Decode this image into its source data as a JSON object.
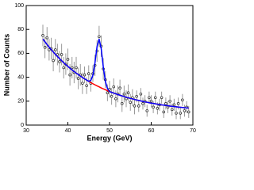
{
  "chart_data": {
    "type": "scatter",
    "x_label": "Energy (GeV)",
    "y_label": "Number of Counts",
    "x": [
      34,
      34.5,
      35,
      35.5,
      36,
      36.5,
      37,
      37.5,
      38,
      38.5,
      39,
      39.5,
      40,
      40.5,
      41,
      41.5,
      42,
      42.5,
      43,
      43.5,
      44,
      44.5,
      45,
      45.5,
      46,
      46.5,
      47,
      47.5,
      48,
      48.5,
      49,
      49.5,
      50,
      50.5,
      51,
      51.5,
      52,
      52.5,
      53,
      53.5,
      54,
      54.5,
      55,
      55.5,
      56,
      56.5,
      57,
      57.5,
      58,
      58.5,
      59,
      59.5,
      60,
      60.5,
      61,
      61.5,
      62,
      62.5,
      63,
      63.5,
      64,
      64.5,
      65,
      65.5,
      66,
      66.5,
      67,
      67.5,
      68,
      68.5,
      69
    ],
    "series": [
      {
        "type": "scatter",
        "color": "#333333",
        "error_color": "#999999",
        "values": [
          75,
          65,
          73,
          63,
          64,
          54,
          63,
          59,
          53,
          59,
          48,
          51,
          55,
          42,
          48,
          44,
          48,
          39,
          42,
          35,
          42,
          33,
          43,
          35,
          43,
          50,
          62,
          74,
          66,
          47,
          38,
          27,
          30,
          24,
          32,
          22,
          26,
          31,
          18,
          26,
          22,
          27,
          19,
          23,
          16,
          24,
          16,
          26,
          18,
          20,
          12,
          23,
          20,
          15,
          23,
          14,
          17,
          23,
          11,
          18,
          15,
          20,
          13,
          17,
          10,
          18,
          10,
          21,
          12,
          15,
          11
        ],
        "errors": [
          9,
          9,
          9,
          9,
          9,
          9,
          9,
          9,
          9,
          9,
          9,
          9,
          9,
          9,
          9,
          9,
          9,
          9,
          9,
          9,
          7,
          7,
          7,
          7,
          7,
          9,
          9,
          9,
          9,
          9,
          7,
          7,
          7,
          7,
          7,
          7,
          7,
          7,
          7,
          7,
          7,
          7,
          7,
          7,
          7,
          5,
          5,
          5,
          5,
          5,
          5,
          5,
          5,
          5,
          5,
          5,
          5,
          5,
          5,
          5,
          5,
          5,
          5,
          5,
          5,
          5,
          5,
          5,
          5,
          5,
          5
        ]
      },
      {
        "type": "line",
        "color": "#ff0000",
        "values": [
          72,
          69.7,
          67.4,
          65.2,
          63.2,
          61.2,
          59.2,
          57.4,
          55.6,
          53.9,
          52.2,
          50.6,
          49.1,
          47.6,
          46.2,
          44.8,
          43.5,
          42.3,
          41,
          39.9,
          38.7,
          37.7,
          36.6,
          35.6,
          34.6,
          33.7,
          32.8,
          32,
          31.1,
          30.3,
          29.6,
          28.8,
          28.1,
          27.4,
          26.8,
          26.2,
          25.5,
          25,
          24.4,
          23.9,
          23.3,
          22.8,
          22.3,
          21.9,
          21.4,
          21,
          20.6,
          20.2,
          19.8,
          19.4,
          19.1,
          18.7,
          18.4,
          18.1,
          17.8,
          17.5,
          17.2,
          16.9,
          16.7,
          16.4,
          16.2,
          15.9,
          15.7,
          15.5,
          15.3,
          15.1,
          14.9,
          14.7,
          14.5,
          14.4,
          14.2
        ]
      },
      {
        "type": "line",
        "color": "#0000ff",
        "values": [
          72,
          69.7,
          67.4,
          65.2,
          63.2,
          61.2,
          59.2,
          57.4,
          55.6,
          53.9,
          52.2,
          50.6,
          49.1,
          47.6,
          46.2,
          44.8,
          43.5,
          42.3,
          41,
          39.9,
          38.7,
          37.7,
          36.6,
          37.4,
          41.5,
          52,
          65.7,
          72,
          64,
          48.6,
          36.5,
          30.6,
          28.1,
          27.4,
          26.8,
          26.2,
          25.5,
          25,
          24.4,
          23.9,
          23.3,
          22.8,
          22.3,
          21.9,
          21.4,
          21,
          20.6,
          20.2,
          19.8,
          19.4,
          19.1,
          18.7,
          18.4,
          18.1,
          17.8,
          17.5,
          17.2,
          16.9,
          16.7,
          16.4,
          16.2,
          15.9,
          15.7,
          15.5,
          15.3,
          15.1,
          14.9,
          14.7,
          14.5,
          14.4,
          14.2
        ]
      }
    ],
    "xlim": [
      30,
      70
    ],
    "xticks": [
      30,
      40,
      50,
      60,
      70
    ],
    "ylim": [
      0,
      100
    ],
    "yticks": [
      0,
      20,
      40,
      60,
      80,
      100
    ]
  }
}
